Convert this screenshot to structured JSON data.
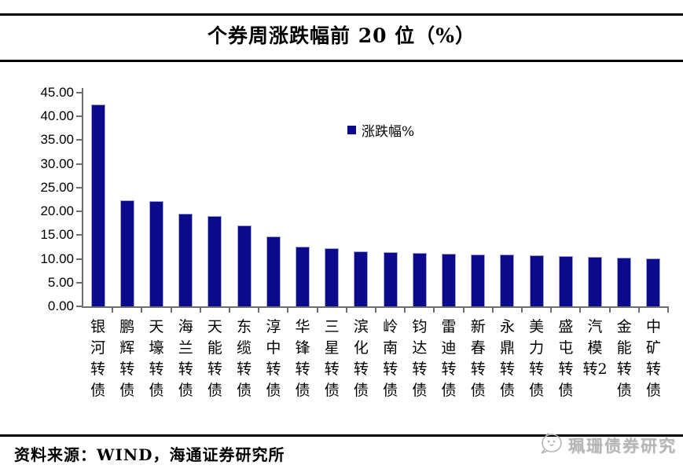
{
  "title": "个券周涨跌幅前 20 位（%）",
  "legend": {
    "label": "涨跌幅%"
  },
  "source_note": "资料来源：WIND，海通证券研究所",
  "watermark": {
    "label": "珮珊债券研究"
  },
  "colors": {
    "bar": "#0a0a8a",
    "bar_edge": "#a3a3d6",
    "axis": "#6e6e6e",
    "rule": "#000000",
    "text": "#000000",
    "watermark": "#b5b5b5"
  },
  "chart_data": {
    "type": "bar",
    "title": "个券周涨跌幅前 20 位（%）",
    "series_name": "涨跌幅%",
    "categories": [
      "银河转债",
      "鹏辉转债",
      "天壕转债",
      "海兰转债",
      "天能转债",
      "东缆转债",
      "淳中转债",
      "华锋转债",
      "三星转债",
      "滨化转债",
      "岭南转债",
      "钧达转债",
      "雷迪转债",
      "新春转债",
      "永鼎转债",
      "美力转债",
      "盛屯转债",
      "汽模转2",
      "金能转债",
      "中矿转债"
    ],
    "values": [
      42.5,
      22.4,
      22.1,
      19.6,
      19.1,
      17.0,
      14.8,
      12.6,
      12.2,
      11.6,
      11.4,
      11.2,
      11.1,
      11.0,
      10.9,
      10.8,
      10.6,
      10.5,
      10.3,
      10.1
    ],
    "xlabel": "",
    "ylabel": "",
    "ylim": [
      0,
      45
    ],
    "ytick_step": 5,
    "ytick_labels": [
      "0.00",
      "5.00",
      "10.00",
      "15.00",
      "20.00",
      "25.00",
      "30.00",
      "35.00",
      "40.00",
      "45.00"
    ],
    "grid": false,
    "legend_position": "upper-middle"
  }
}
